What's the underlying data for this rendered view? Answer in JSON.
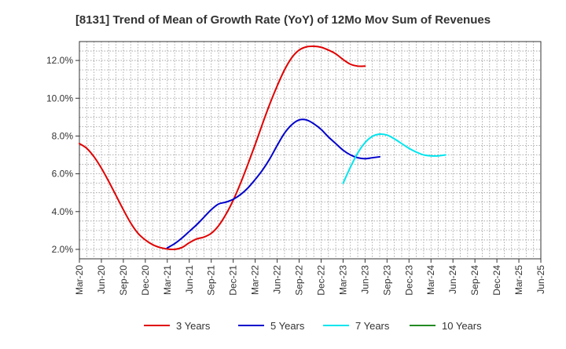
{
  "chart_data": {
    "type": "line",
    "title": "[8131]  Trend of Mean of Growth Rate (YoY) of 12Mo Mov Sum of Revenues",
    "xlabel": "",
    "ylabel": "",
    "x_ticks": [
      "Mar-20",
      "Jun-20",
      "Sep-20",
      "Dec-20",
      "Mar-21",
      "Jun-21",
      "Sep-21",
      "Dec-21",
      "Mar-22",
      "Jun-22",
      "Sep-22",
      "Dec-22",
      "Mar-23",
      "Jun-23",
      "Sep-23",
      "Dec-23",
      "Mar-24",
      "Jun-24",
      "Sep-24",
      "Dec-24",
      "Mar-25",
      "Jun-25"
    ],
    "y_ticks": [
      "2.0%",
      "4.0%",
      "6.0%",
      "8.0%",
      "10.0%",
      "12.0%"
    ],
    "y_tick_values": [
      2,
      4,
      6,
      8,
      10,
      12
    ],
    "ylim": [
      1.5,
      13.0
    ],
    "grid": true,
    "series": [
      {
        "name": "3 Years",
        "color": "#e00000",
        "start_index": 0,
        "values": [
          7.6,
          7.35,
          6.9,
          6.3,
          5.6,
          4.85,
          4.1,
          3.4,
          2.85,
          2.5,
          2.25,
          2.1,
          2.02,
          2.0,
          2.1,
          2.35,
          2.55,
          2.65,
          2.85,
          3.25,
          3.85,
          4.6,
          5.5,
          6.5,
          7.55,
          8.65,
          9.7,
          10.65,
          11.5,
          12.15,
          12.55,
          12.72,
          12.75,
          12.7,
          12.55,
          12.35,
          12.05,
          11.8,
          11.7,
          11.7
        ]
      },
      {
        "name": "5 Years",
        "color": "#0000cc",
        "start_index": 12,
        "values": [
          2.08,
          2.3,
          2.6,
          2.95,
          3.3,
          3.7,
          4.1,
          4.4,
          4.5,
          4.65,
          4.9,
          5.25,
          5.7,
          6.2,
          6.8,
          7.5,
          8.15,
          8.6,
          8.85,
          8.85,
          8.65,
          8.35,
          7.95,
          7.6,
          7.25,
          7.0,
          6.85,
          6.8,
          6.85,
          6.9
        ]
      },
      {
        "name": "7 Years",
        "color": "#00e5ee",
        "start_index": 36,
        "values": [
          5.5,
          6.35,
          7.1,
          7.65,
          7.98,
          8.1,
          8.05,
          7.85,
          7.6,
          7.35,
          7.15,
          7.0,
          6.95,
          6.95,
          7.0
        ]
      },
      {
        "name": "10 Years",
        "color": "#228b22",
        "start_index": 0,
        "values": []
      }
    ]
  }
}
